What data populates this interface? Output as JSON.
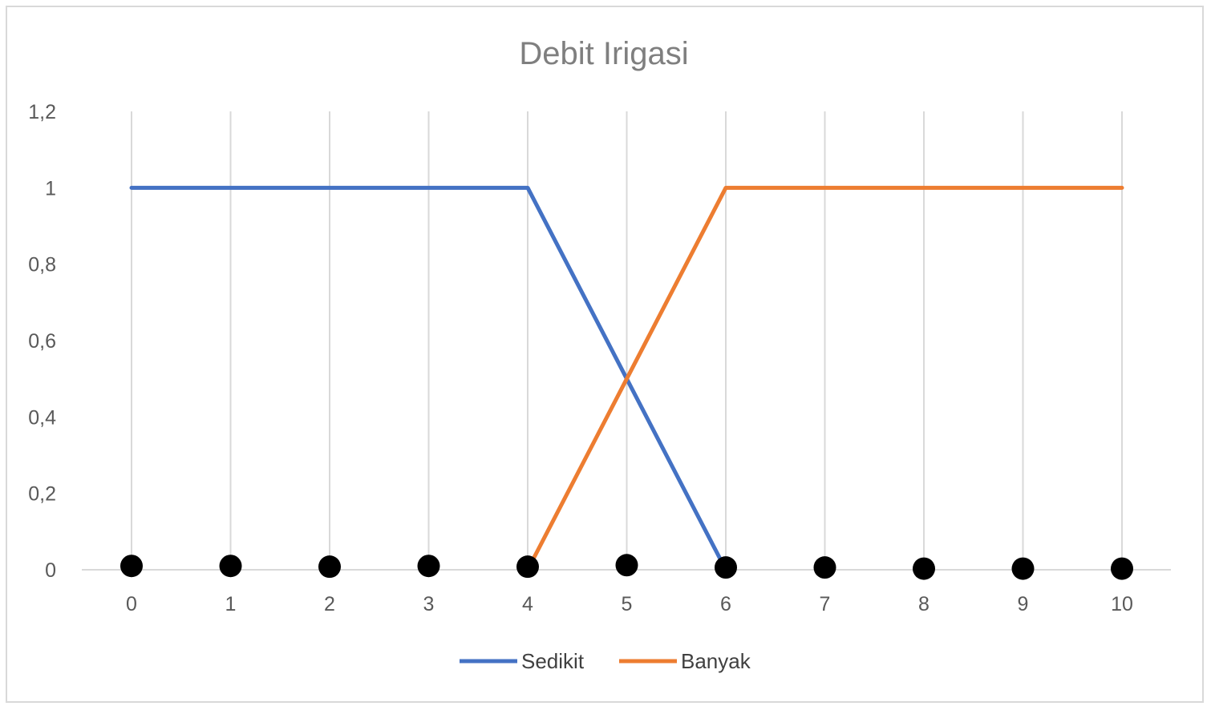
{
  "chart_data": {
    "type": "line",
    "title": "Debit Irigasi",
    "xlabel": "",
    "ylabel": "",
    "x": [
      "0",
      "1",
      "2",
      "3",
      "4",
      "5",
      "6",
      "7",
      "8",
      "9",
      "10"
    ],
    "ylim": [
      0,
      1.2
    ],
    "y_ticks": [
      "0",
      "0,2",
      "0,4",
      "0,6",
      "0,8",
      "1",
      "1,2"
    ],
    "grid": "vertical",
    "legend": "bottom",
    "series": [
      {
        "name": "Sedikit",
        "color": "#4472c4",
        "values": [
          1,
          1,
          1,
          1,
          1,
          0.5,
          0,
          null,
          null,
          null,
          null
        ]
      },
      {
        "name": "Banyak",
        "color": "#ed7d31",
        "values": [
          null,
          null,
          null,
          null,
          0,
          0.5,
          1,
          1,
          1,
          1,
          1
        ]
      }
    ],
    "markers": {
      "color": "#000000",
      "values": [
        0.01,
        0.01,
        0.008,
        0.01,
        0.008,
        0.012,
        0.006,
        0.006,
        0.003,
        0.003,
        0.003
      ]
    }
  }
}
